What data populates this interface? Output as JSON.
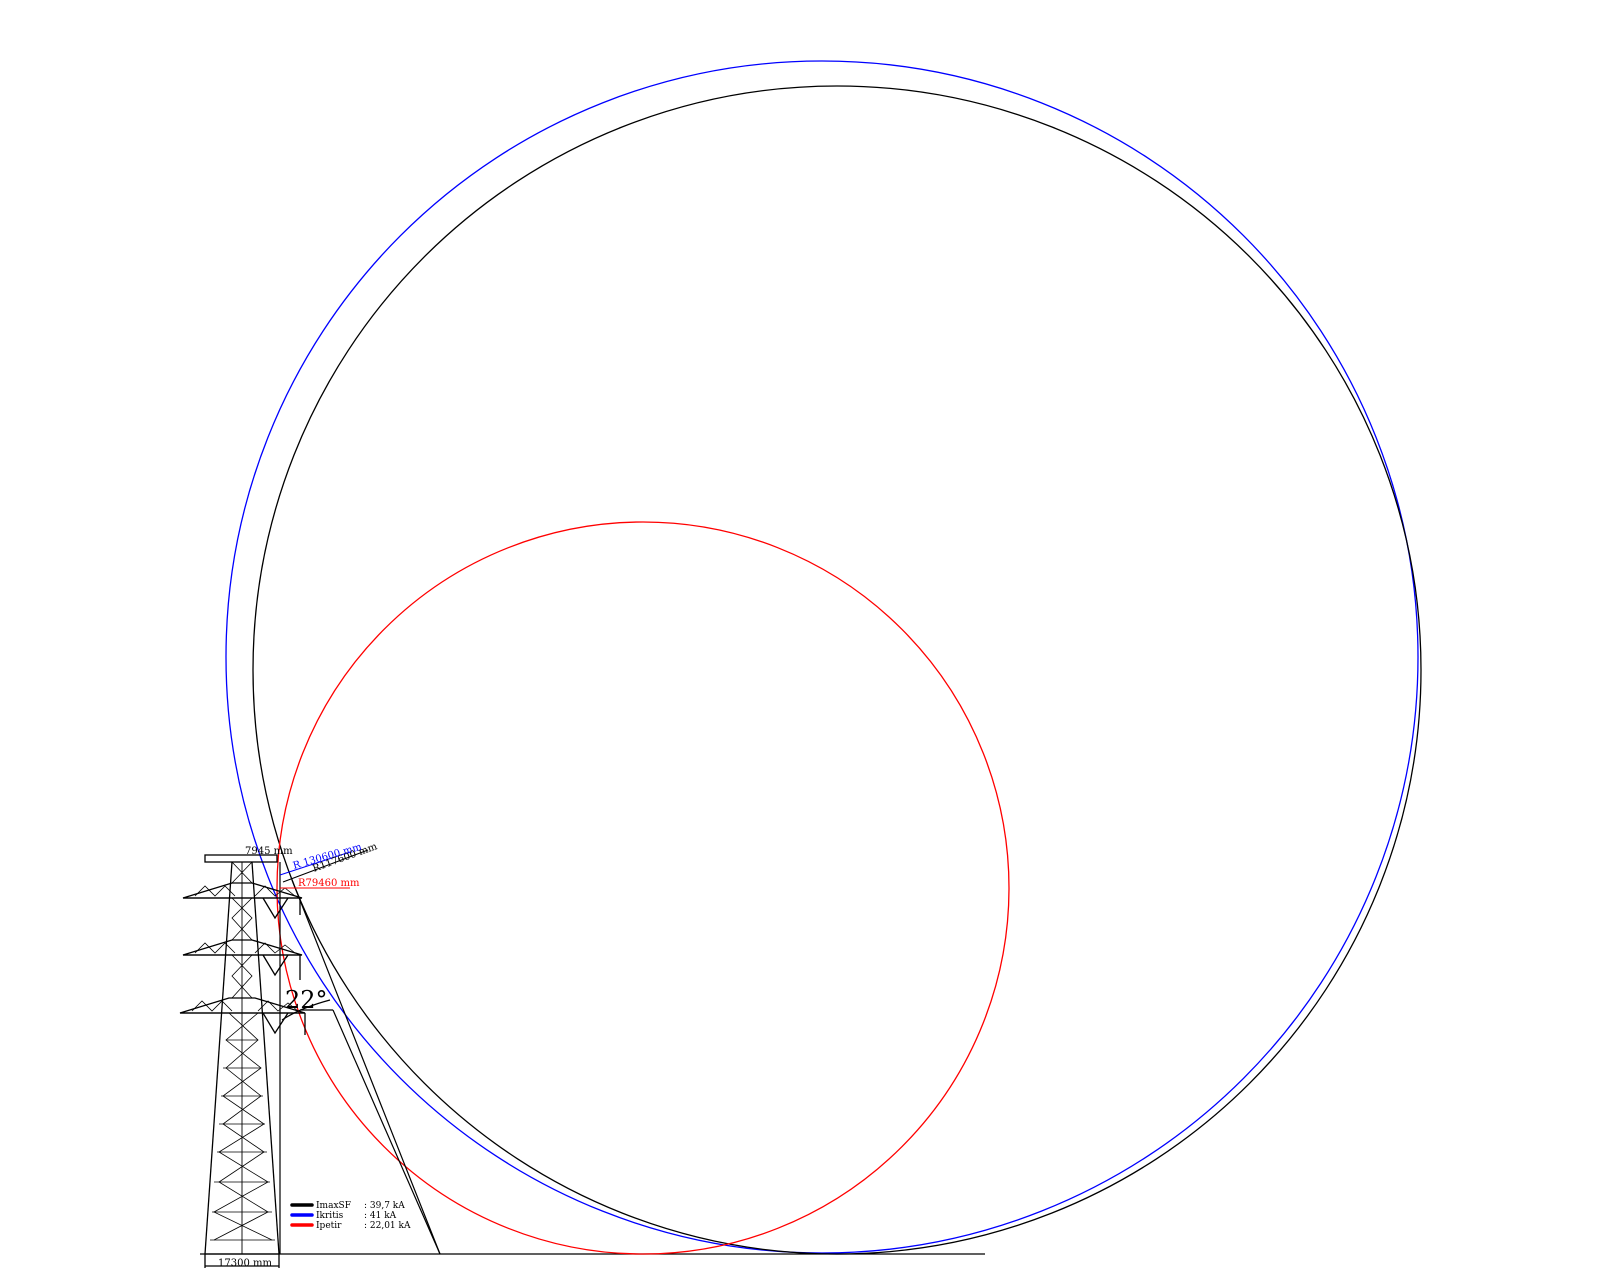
{
  "diagram": {
    "colors": {
      "black": "#000000",
      "blue": "#0000ff",
      "red": "#ff0000",
      "background": "#ffffff"
    },
    "labels": {
      "top_width": "7945 mm",
      "radius_blue": "R 130600 mm",
      "radius_black": "R117600 mm",
      "radius_red": "R79460 mm",
      "angle": "22°",
      "base_width": "17300 mm"
    },
    "legend": [
      {
        "name": "I​max​SF",
        "value": ": 39,7 kA",
        "color": "#000000"
      },
      {
        "name": "I​kritis",
        "value": ": 41 kA",
        "color": "#0000ff"
      },
      {
        "name": "I​petir",
        "value": ": 22,01 kA",
        "color": "#ff0000"
      }
    ]
  }
}
